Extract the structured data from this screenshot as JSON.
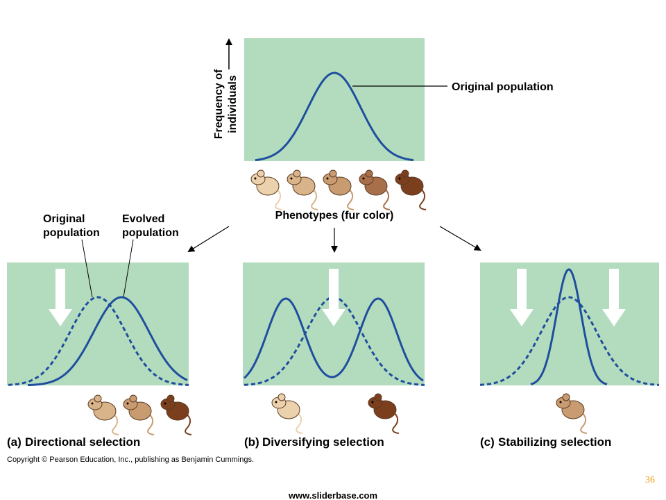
{
  "top_panel": {
    "y_axis_label": [
      "Frequency of",
      "individuals"
    ],
    "curve_label": "Original population",
    "x_axis_label": "Phenotypes (fur color)"
  },
  "panels": [
    {
      "letter": "(a)",
      "title": "Directional selection",
      "curve_labels": [
        {
          "lines": [
            "Original",
            "population"
          ]
        },
        {
          "lines": [
            "Evolved",
            "population"
          ]
        }
      ]
    },
    {
      "letter": "(b)",
      "title": "Diversifying selection"
    },
    {
      "letter": "(c)",
      "title": "Stabilizing selection"
    }
  ],
  "footer": {
    "copyright": "Copyright © Pearson Education, Inc., publishing as Benjamin Cummings.",
    "page_number": "36",
    "website": "www.sliderbase.com"
  }
}
